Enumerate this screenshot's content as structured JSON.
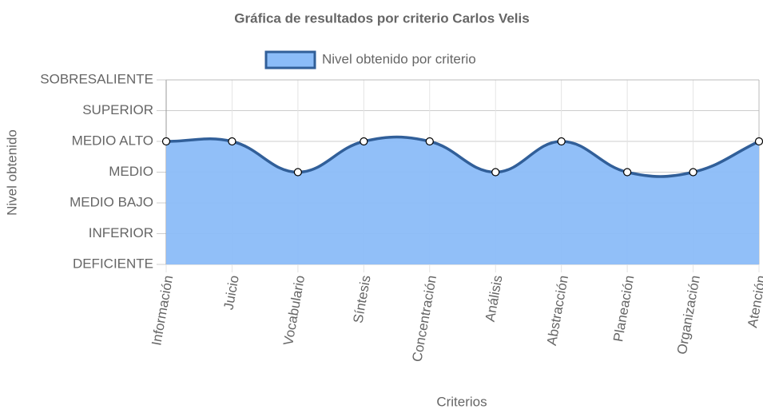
{
  "chart_data": {
    "type": "area",
    "title": "Gráfica de resultados por criterio Carlos Velis",
    "x_label": "Criterios",
    "y_label": "Nivel obtenido",
    "categories": [
      "Información",
      "Juicio",
      "Vocabulario",
      "Síntesis",
      "Concentración",
      "Análisis",
      "Abstracción",
      "Planeación",
      "Organización",
      "Atención"
    ],
    "series": [
      {
        "name": "Nivel obtenido por criterio",
        "color": "#8bbcf8",
        "line_color": "#315f99",
        "values": [
          5,
          5,
          4,
          5,
          5,
          4,
          5,
          4,
          4,
          5
        ]
      }
    ],
    "ylim": [
      1,
      7
    ],
    "yticks": [
      {
        "value": 1,
        "label": "DEFICIENTE"
      },
      {
        "value": 2,
        "label": "INFERIOR"
      },
      {
        "value": 3,
        "label": "MEDIO BAJO"
      },
      {
        "value": 4,
        "label": "MEDIO"
      },
      {
        "value": 5,
        "label": "MEDIO ALTO"
      },
      {
        "value": 6,
        "label": "SUPERIOR"
      },
      {
        "value": 7,
        "label": "SOBRESALIENTE"
      }
    ],
    "grid": true,
    "legend": "top"
  }
}
